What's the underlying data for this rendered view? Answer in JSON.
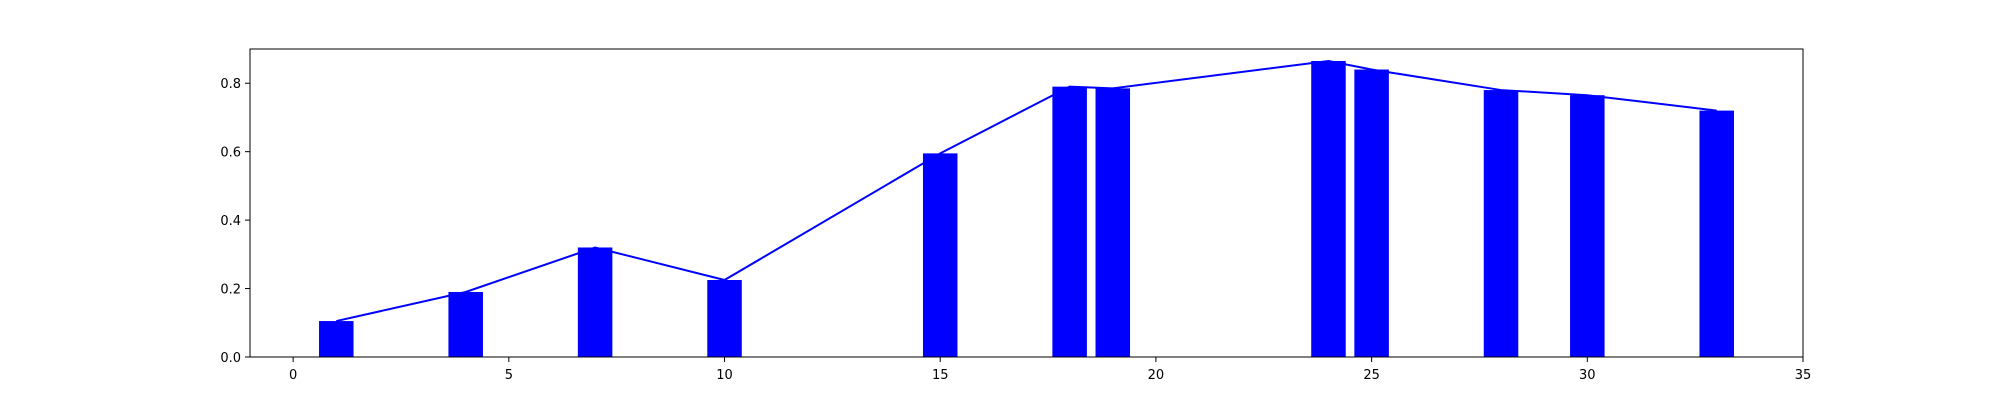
{
  "chart_data": {
    "type": "bar",
    "title": "",
    "xlabel": "",
    "ylabel": "",
    "x": [
      1,
      4,
      7,
      10,
      15,
      18,
      19,
      24,
      25,
      28,
      30,
      33
    ],
    "values": [
      0.105,
      0.19,
      0.32,
      0.225,
      0.595,
      0.79,
      0.785,
      0.865,
      0.84,
      0.78,
      0.765,
      0.72
    ],
    "bar_width": 0.8,
    "line_overlay": true,
    "xlim": [
      -1,
      35
    ],
    "ylim": [
      0,
      0.9
    ],
    "xticks": [
      0,
      5,
      10,
      15,
      20,
      25,
      30,
      35
    ],
    "yticks": [
      0.0,
      0.2,
      0.4,
      0.6,
      0.8
    ],
    "ytick_labels": [
      "0.0",
      "0.2",
      "0.4",
      "0.6",
      "0.8"
    ],
    "grid": false,
    "colors": {
      "bar": "#0000ff",
      "line": "#0000ff"
    }
  }
}
